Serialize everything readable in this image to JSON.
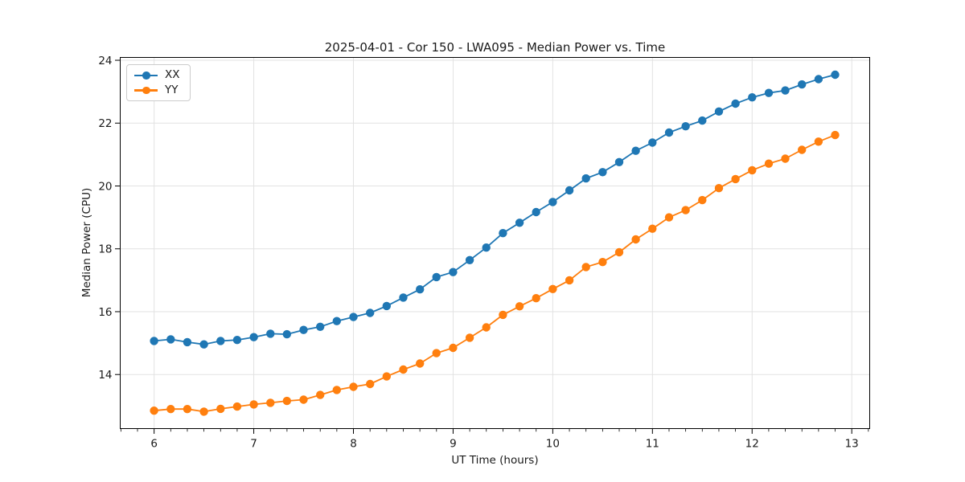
{
  "chart_data": {
    "type": "line",
    "title": "2025-04-01 - Cor 150 - LWA095 - Median Power vs. Time",
    "xlabel": "UT Time (hours)",
    "ylabel": "Median Power (CPU)",
    "xlim": [
      5.66,
      13.18
    ],
    "ylim": [
      12.28,
      24.09
    ],
    "xticks": [
      6,
      7,
      8,
      9,
      10,
      11,
      12,
      13
    ],
    "yticks": [
      14,
      16,
      18,
      20,
      22,
      24
    ],
    "x_minor_step": 0.166667,
    "grid": "major-both",
    "legend_position": "upper-left",
    "marker": "circle",
    "x": [
      6.0,
      6.167,
      6.333,
      6.5,
      6.667,
      6.833,
      7.0,
      7.167,
      7.333,
      7.5,
      7.667,
      7.833,
      8.0,
      8.167,
      8.333,
      8.5,
      8.667,
      8.833,
      9.0,
      9.167,
      9.333,
      9.5,
      9.667,
      9.833,
      10.0,
      10.167,
      10.333,
      10.5,
      10.667,
      10.833,
      11.0,
      11.167,
      11.333,
      11.5,
      11.667,
      11.833,
      12.0,
      12.167,
      12.333,
      12.5,
      12.667,
      12.833
    ],
    "series": [
      {
        "name": "XX",
        "color": "#1f77b4",
        "values": [
          15.07,
          15.12,
          15.03,
          14.96,
          15.07,
          15.1,
          15.19,
          15.3,
          15.28,
          15.42,
          15.52,
          15.7,
          15.83,
          15.96,
          16.18,
          16.45,
          16.71,
          17.1,
          17.26,
          17.64,
          18.04,
          18.5,
          18.83,
          19.17,
          19.49,
          19.86,
          20.24,
          20.44,
          20.76,
          21.12,
          21.38,
          21.7,
          21.9,
          22.08,
          22.37,
          22.62,
          22.82,
          22.96,
          23.04,
          23.23,
          23.4,
          23.54
        ]
      },
      {
        "name": "YY",
        "color": "#ff7f0e",
        "values": [
          12.85,
          12.9,
          12.9,
          12.82,
          12.91,
          12.98,
          13.05,
          13.1,
          13.16,
          13.2,
          13.35,
          13.51,
          13.61,
          13.7,
          13.94,
          14.16,
          14.35,
          14.68,
          14.85,
          15.17,
          15.5,
          15.9,
          16.17,
          16.43,
          16.72,
          17.0,
          17.42,
          17.58,
          17.89,
          18.3,
          18.64,
          19.0,
          19.23,
          19.55,
          19.93,
          20.22,
          20.5,
          20.71,
          20.87,
          21.15,
          21.41,
          21.62
        ]
      }
    ]
  }
}
